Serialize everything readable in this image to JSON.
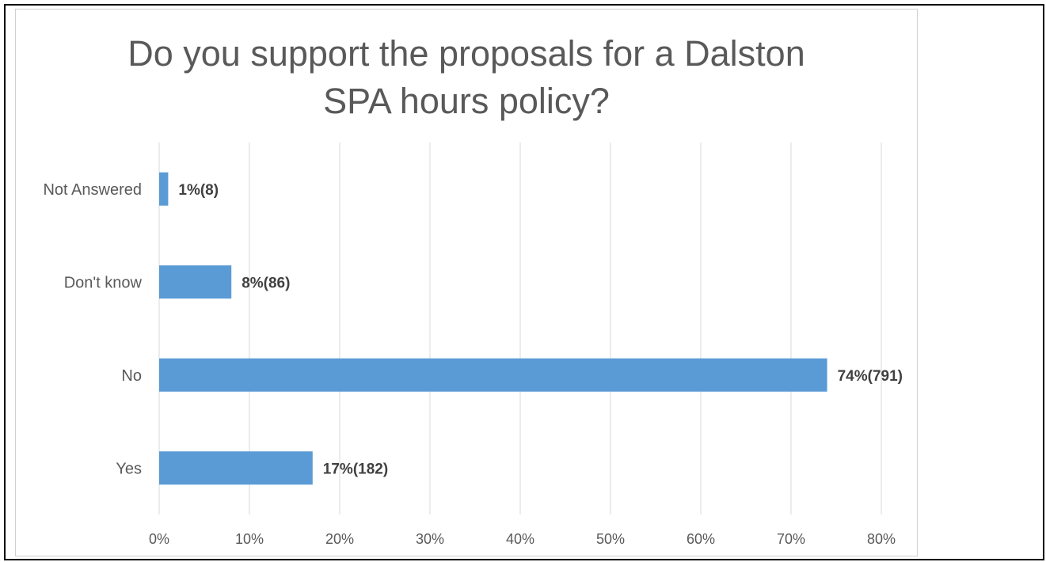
{
  "chart_data": {
    "type": "bar",
    "orientation": "horizontal",
    "title": "Do you support the proposals for a Dalston SPA hours policy?",
    "categories": [
      "Not Answered",
      "Don't know",
      "No",
      "Yes"
    ],
    "values": [
      1,
      8,
      74,
      17
    ],
    "data_labels": [
      "1%(8)",
      "8%(86)",
      "74%(791)",
      "17%(182)"
    ],
    "xticks": [
      "0%",
      "10%",
      "20%",
      "30%",
      "40%",
      "50%",
      "60%",
      "70%",
      "80%"
    ],
    "xlim": [
      0,
      80
    ],
    "xlabel": "",
    "ylabel": "",
    "grid": true,
    "legend": "none",
    "bar_color": "#5b9bd5",
    "grid_color": "#d9d9d9"
  }
}
